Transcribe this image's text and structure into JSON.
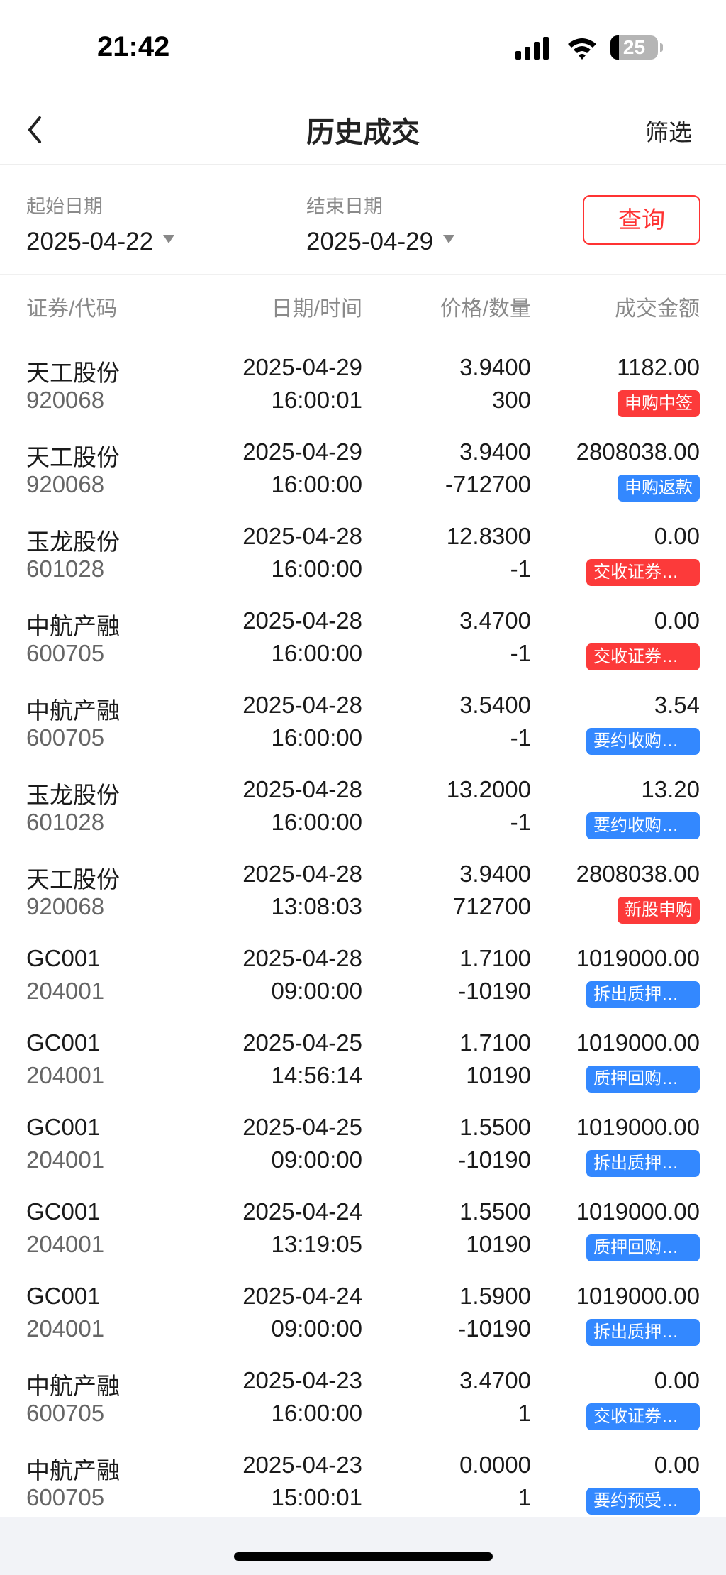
{
  "status_bar": {
    "time": "21:42",
    "battery": "25",
    "icons": [
      "cellular-signal-icon",
      "wifi-icon",
      "battery-icon"
    ]
  },
  "header": {
    "title": "历史成交",
    "filter_label": "筛选",
    "back_icon": "chevron-left-icon"
  },
  "date_range": {
    "start_label": "起始日期",
    "start_value": "2025-04-22",
    "end_label": "结束日期",
    "end_value": "2025-04-29",
    "query_label": "查询"
  },
  "columns": [
    "证券/代码",
    "日期/时间",
    "价格/数量",
    "成交金额"
  ],
  "colors": {
    "red_badge": "#fc3a3a",
    "blue_badge": "#3388ff",
    "accent": "#ff3333"
  },
  "rows": [
    {
      "name": "天工股份",
      "code": "920068",
      "date": "2025-04-29",
      "time": "16:00:01",
      "price": "3.9400",
      "qty": "300",
      "amount": "1182.00",
      "tag": "申购中签",
      "tag_color": "red"
    },
    {
      "name": "天工股份",
      "code": "920068",
      "date": "2025-04-29",
      "time": "16:00:00",
      "price": "3.9400",
      "qty": "-712700",
      "amount": "2808038.00",
      "tag": "申购返款",
      "tag_color": "blue"
    },
    {
      "name": "玉龙股份",
      "code": "601028",
      "date": "2025-04-28",
      "time": "16:00:00",
      "price": "12.8300",
      "qty": "-1",
      "amount": "0.00",
      "tag": "交收证券冻结…",
      "tag_color": "red"
    },
    {
      "name": "中航产融",
      "code": "600705",
      "date": "2025-04-28",
      "time": "16:00:00",
      "price": "3.4700",
      "qty": "-1",
      "amount": "0.00",
      "tag": "交收证券冻结…",
      "tag_color": "red"
    },
    {
      "name": "中航产融",
      "code": "600705",
      "date": "2025-04-28",
      "time": "16:00:00",
      "price": "3.5400",
      "qty": "-1",
      "amount": "3.54",
      "tag": "要约收购资金…",
      "tag_color": "blue"
    },
    {
      "name": "玉龙股份",
      "code": "601028",
      "date": "2025-04-28",
      "time": "16:00:00",
      "price": "13.2000",
      "qty": "-1",
      "amount": "13.20",
      "tag": "要约收购资金…",
      "tag_color": "blue"
    },
    {
      "name": "天工股份",
      "code": "920068",
      "date": "2025-04-28",
      "time": "13:08:03",
      "price": "3.9400",
      "qty": "712700",
      "amount": "2808038.00",
      "tag": "新股申购",
      "tag_color": "red"
    },
    {
      "name": "GC001",
      "code": "204001",
      "date": "2025-04-28",
      "time": "09:00:00",
      "price": "1.7100",
      "qty": "-10190",
      "amount": "1019000.00",
      "tag": "拆出质押购回",
      "tag_color": "blue"
    },
    {
      "name": "GC001",
      "code": "204001",
      "date": "2025-04-25",
      "time": "14:56:14",
      "price": "1.7100",
      "qty": "10190",
      "amount": "1019000.00",
      "tag": "质押回购拆出",
      "tag_color": "blue"
    },
    {
      "name": "GC001",
      "code": "204001",
      "date": "2025-04-25",
      "time": "09:00:00",
      "price": "1.5500",
      "qty": "-10190",
      "amount": "1019000.00",
      "tag": "拆出质押购回",
      "tag_color": "blue"
    },
    {
      "name": "GC001",
      "code": "204001",
      "date": "2025-04-24",
      "time": "13:19:05",
      "price": "1.5500",
      "qty": "10190",
      "amount": "1019000.00",
      "tag": "质押回购拆出",
      "tag_color": "blue"
    },
    {
      "name": "GC001",
      "code": "204001",
      "date": "2025-04-24",
      "time": "09:00:00",
      "price": "1.5900",
      "qty": "-10190",
      "amount": "1019000.00",
      "tag": "拆出质押购回",
      "tag_color": "blue"
    },
    {
      "name": "中航产融",
      "code": "600705",
      "date": "2025-04-23",
      "time": "16:00:00",
      "price": "3.4700",
      "qty": "1",
      "amount": "0.00",
      "tag": "交收证券冻结",
      "tag_color": "blue"
    },
    {
      "name": "中航产融",
      "code": "600705",
      "date": "2025-04-23",
      "time": "15:00:01",
      "price": "0.0000",
      "qty": "1",
      "amount": "0.00",
      "tag": "要约预受股份…",
      "tag_color": "blue"
    }
  ]
}
